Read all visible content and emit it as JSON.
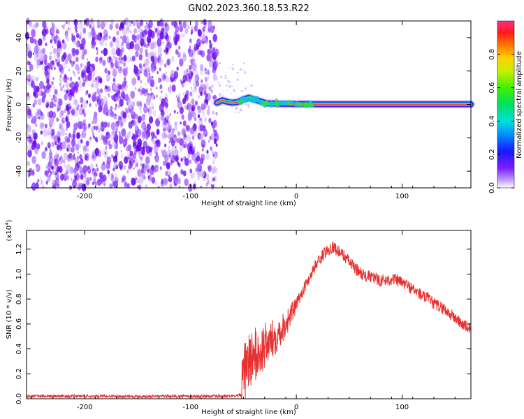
{
  "title": "GN02.2023.360.18.53.R22",
  "chart_data": [
    {
      "type": "heatmap",
      "xlabel": "Height of straight line (km)",
      "ylabel": "Frequency (Hz)",
      "xlim": [
        -255,
        165
      ],
      "ylim": [
        -50,
        50
      ],
      "xticks": [
        -200,
        -100,
        0,
        100
      ],
      "yticks": [
        40,
        20,
        0,
        -20,
        -40
      ],
      "grid": false,
      "noise_region_x": [
        -255,
        -75
      ],
      "signal_ridge": {
        "x": [
          -75,
          -70,
          -65,
          -60,
          -55,
          -50,
          -45,
          -40,
          -35,
          -30,
          -25,
          -20,
          -15,
          -10,
          -5,
          0,
          10,
          20,
          50,
          100,
          165
        ],
        "y": [
          1.0,
          2.5,
          1.5,
          1.0,
          1.5,
          3.0,
          4.0,
          3.0,
          2.0,
          1.0,
          0.5,
          0.5,
          0.3,
          0.3,
          0.3,
          0.2,
          0.2,
          0.1,
          0.1,
          0.1,
          0.1
        ]
      },
      "colorbar": {
        "label": "Normalized spectral amplitude",
        "range": [
          0.0,
          1.0
        ],
        "ticks": [
          "0.0",
          "0.2",
          "0.4",
          "0.6",
          "0.8"
        ]
      }
    },
    {
      "type": "line",
      "xlabel": "Height of straight line (km)",
      "ylabel": "SNR (10 * v/v)",
      "y_multiplier": "(x10",
      "y_multiplier_exp": "4",
      "y_multiplier_close": ")",
      "xlim": [
        -255,
        165
      ],
      "ylim": [
        0,
        1.35
      ],
      "xticks": [
        -200,
        -100,
        0,
        100
      ],
      "yticks": [
        "0.0",
        "0.2",
        "0.4",
        "0.6",
        "0.8",
        "1.0",
        "1.2"
      ],
      "grid": false,
      "series": [
        {
          "color": "#e83030",
          "x": [
            -255,
            -200,
            -150,
            -100,
            -60,
            -52,
            -50,
            -48,
            -45,
            -40,
            -35,
            -30,
            -25,
            -20,
            -15,
            -10,
            -5,
            0,
            5,
            10,
            15,
            20,
            25,
            30,
            35,
            40,
            45,
            50,
            55,
            60,
            65,
            70,
            75,
            80,
            85,
            90,
            95,
            100,
            105,
            110,
            115,
            120,
            125,
            130,
            135,
            140,
            145,
            150,
            155,
            160,
            165
          ],
          "y": [
            0.02,
            0.02,
            0.02,
            0.02,
            0.02,
            0.03,
            0.12,
            0.25,
            0.3,
            0.35,
            0.35,
            0.42,
            0.45,
            0.5,
            0.55,
            0.6,
            0.68,
            0.75,
            0.85,
            0.93,
            1.02,
            1.1,
            1.15,
            1.2,
            1.22,
            1.18,
            1.15,
            1.1,
            1.05,
            1.02,
            0.98,
            0.98,
            0.96,
            0.95,
            0.95,
            0.96,
            0.95,
            0.93,
            0.91,
            0.88,
            0.85,
            0.82,
            0.8,
            0.76,
            0.74,
            0.72,
            0.68,
            0.65,
            0.61,
            0.58,
            0.56
          ]
        }
      ]
    }
  ]
}
